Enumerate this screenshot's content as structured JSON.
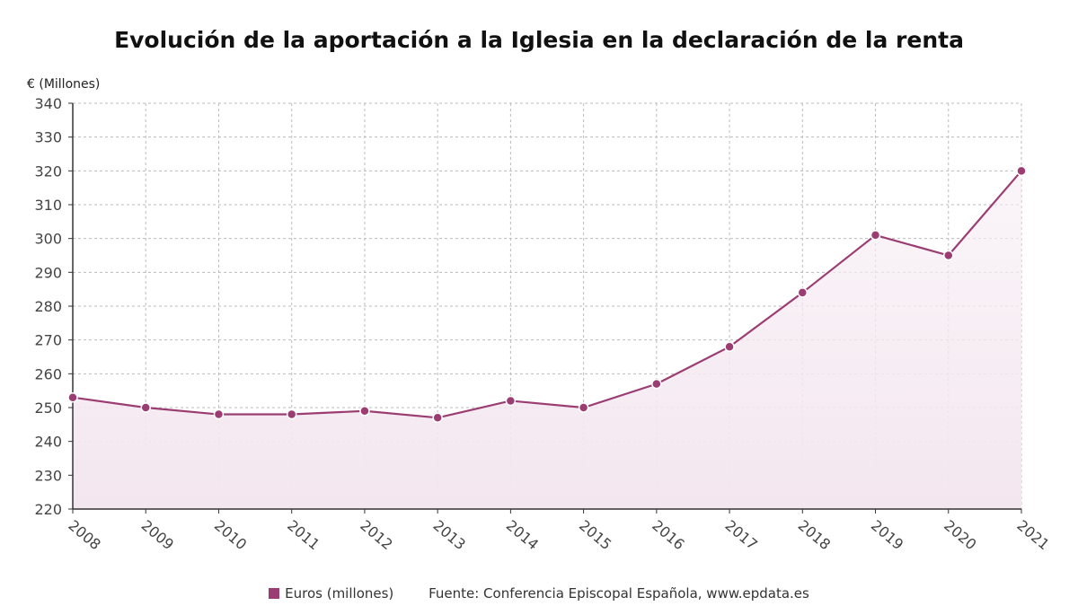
{
  "chart_data": {
    "type": "area",
    "title": "Evolución de la aportación a la Iglesia en la declaración de la renta",
    "ylabel": "€ (Millones)",
    "xlabel": "",
    "categories": [
      "2008",
      "2009",
      "2010",
      "2011",
      "2012",
      "2013",
      "2014",
      "2015",
      "2016",
      "2017",
      "2018",
      "2019",
      "2020",
      "2021"
    ],
    "series": [
      {
        "name": "Euros (millones)",
        "values": [
          253,
          250,
          248,
          248,
          249,
          247,
          252,
          250,
          257,
          268,
          284,
          301,
          295,
          320
        ]
      }
    ],
    "ylim": [
      220,
      340
    ],
    "yticks": [
      220,
      230,
      240,
      250,
      260,
      270,
      280,
      290,
      300,
      310,
      320,
      330,
      340
    ],
    "grid": true,
    "legend_position": "bottom"
  },
  "colors": {
    "series": "#9b3d72",
    "fill": "#f5eaf1",
    "grid": "#bbbbbb"
  },
  "legend": {
    "series_label": "Euros (millones)",
    "source": "Fuente: Conferencia Episcopal Española, www.epdata.es"
  }
}
